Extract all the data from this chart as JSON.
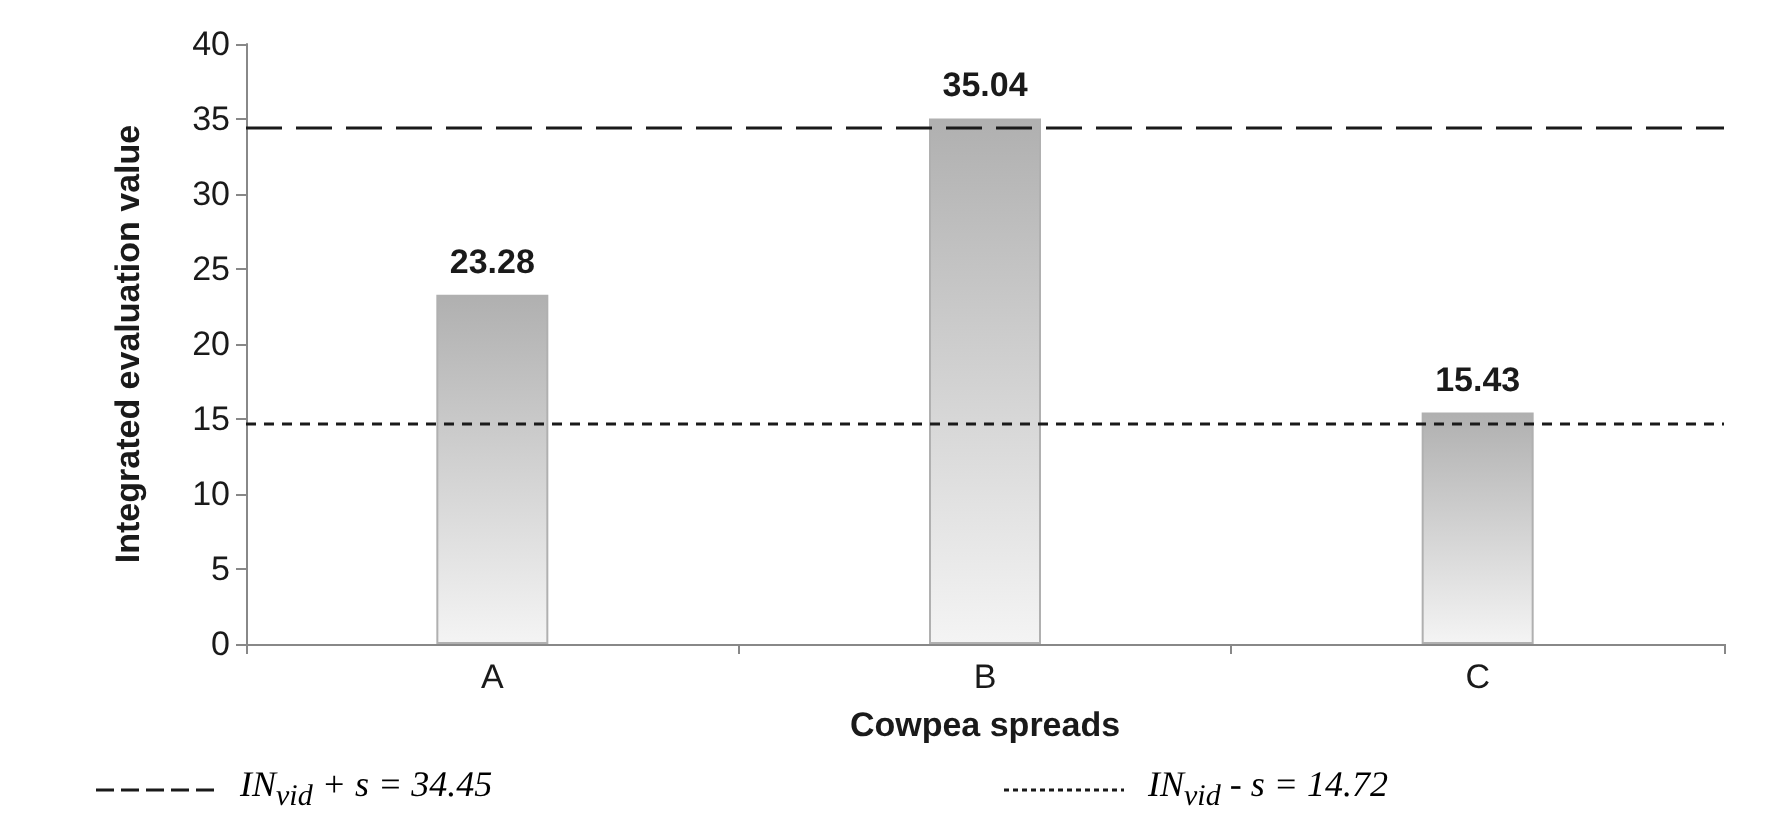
{
  "chart_data": {
    "type": "bar",
    "xlabel": "Cowpea spreads",
    "ylabel": "Integrated evaluation value",
    "categories": [
      "A",
      "B",
      "C"
    ],
    "values": [
      23.28,
      35.04,
      15.43
    ],
    "color": "#b0b0b0",
    "ylim": [
      0,
      40
    ],
    "yticks": [
      0,
      5,
      10,
      15,
      20,
      25,
      30,
      35,
      40
    ],
    "grid": false,
    "legend": "bottom",
    "data_labels": true,
    "ref_lines": [
      {
        "axis": "y",
        "value": 34.45,
        "label": "IN$_{vid}$ + s = 34.45",
        "line_style": "dashed",
        "color": "#1a1a1a"
      },
      {
        "axis": "y",
        "value": 14.72,
        "label": "IN$_{vid}$ - s = 14.72",
        "line_style": "dotted",
        "color": "#1a1a1a"
      }
    ]
  }
}
